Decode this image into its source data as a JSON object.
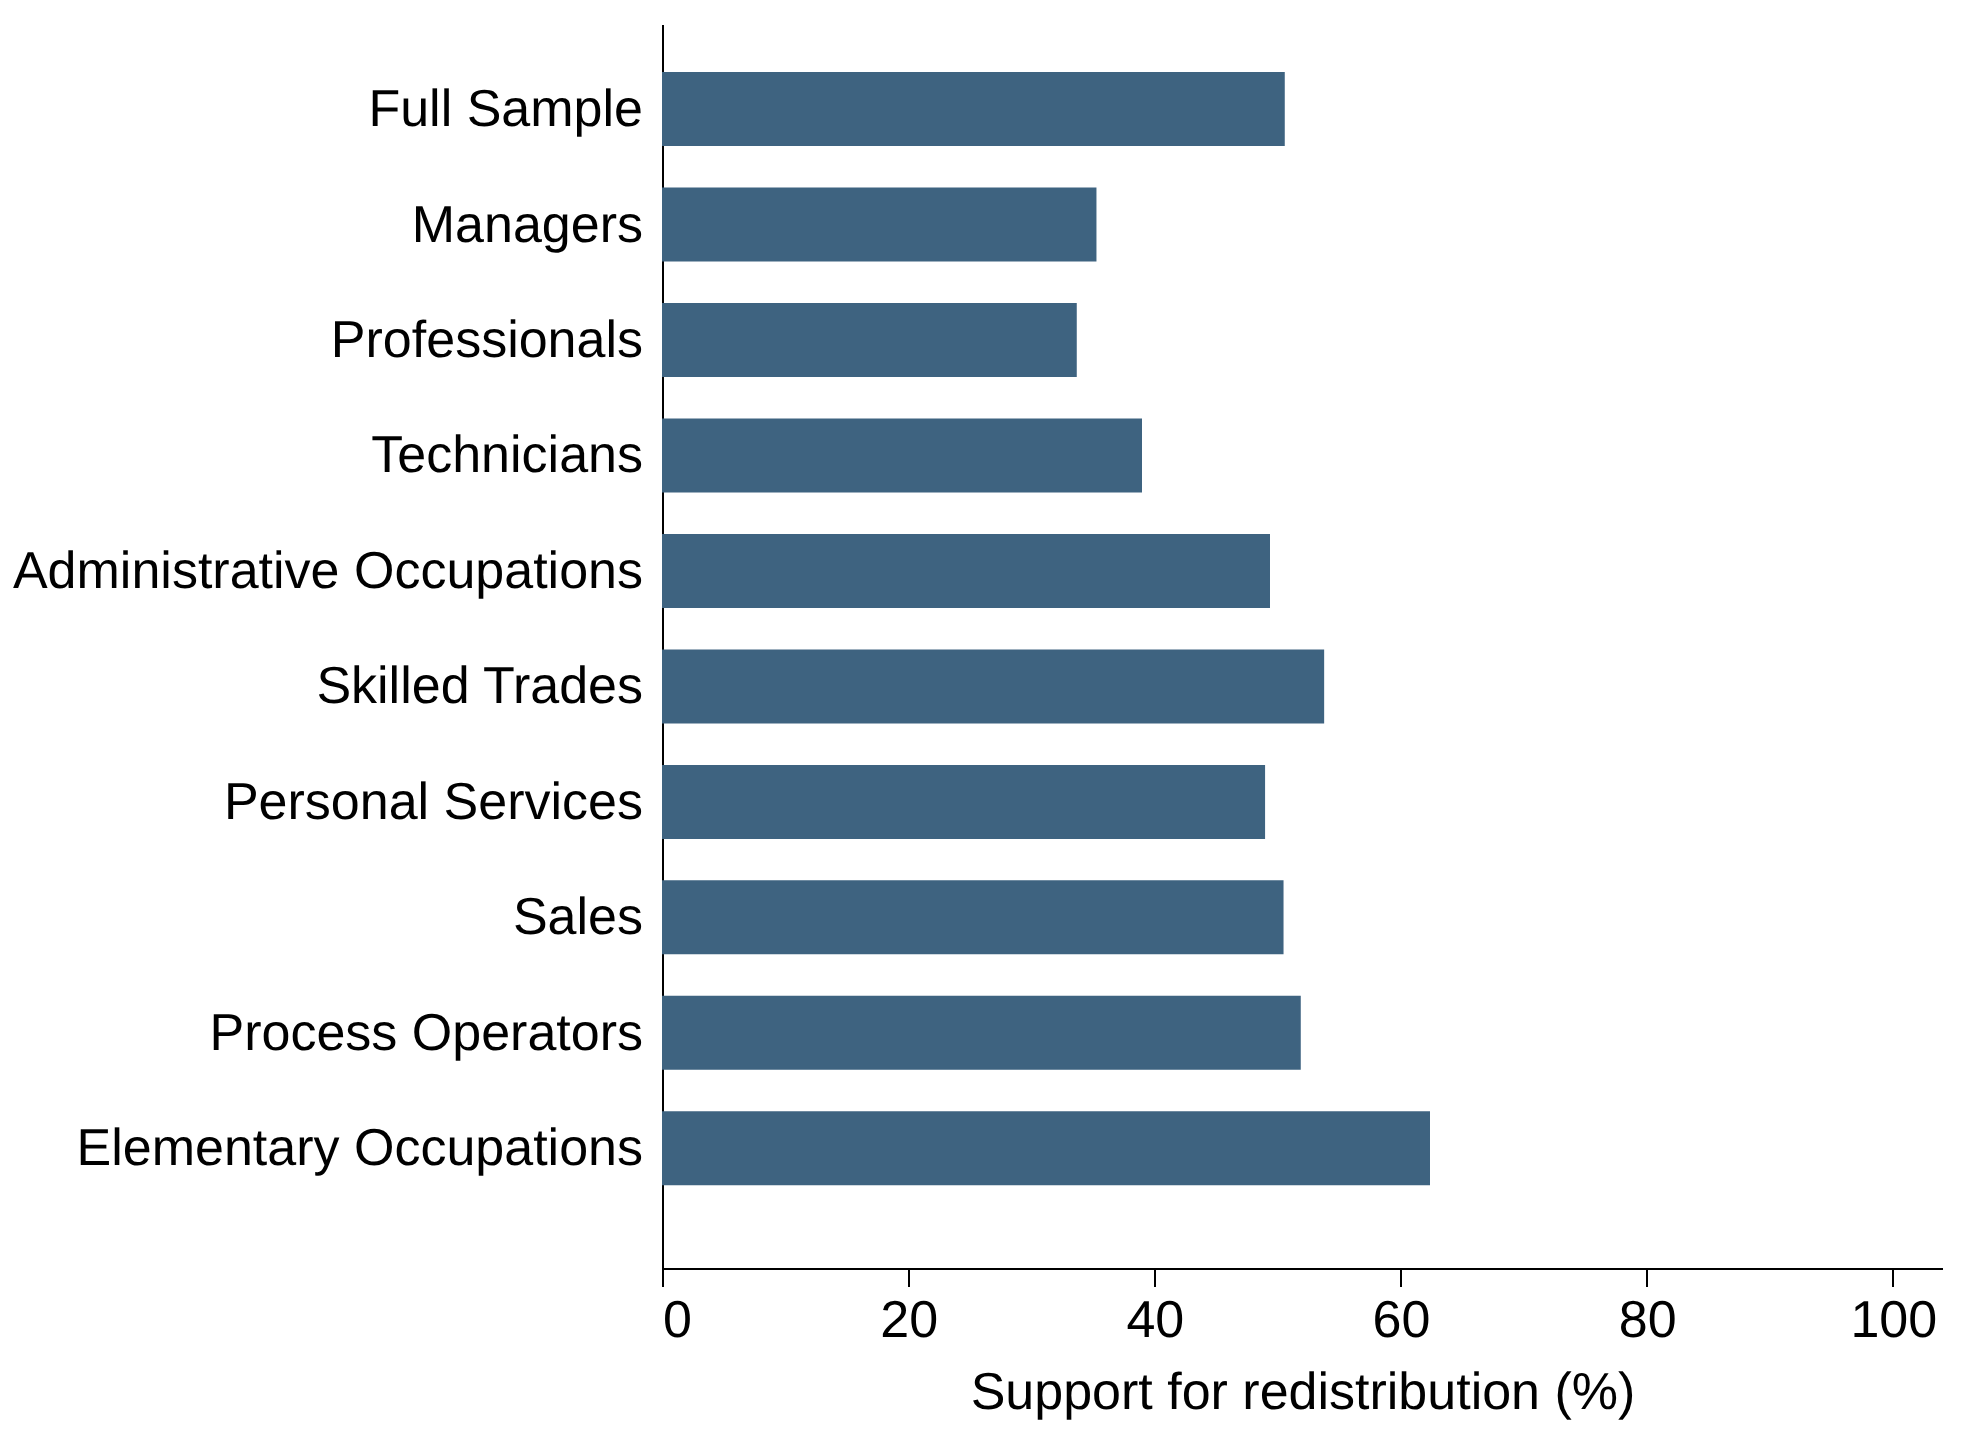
{
  "chart_data": {
    "type": "bar",
    "orientation": "horizontal",
    "xlabel": "Support for redistribution (%)",
    "categories": [
      "Full Sample",
      "Managers",
      "Professionals",
      "Technicians",
      "Administrative Occupations",
      "Skilled Trades",
      "Personal Services",
      "Sales",
      "Process Operators",
      "Elementary Occupations"
    ],
    "values": [
      50.6,
      35.3,
      33.7,
      39.0,
      49.4,
      53.8,
      49.0,
      50.5,
      51.9,
      62.4
    ],
    "color": "#3e6380",
    "xlim": [
      0,
      104
    ],
    "xticks": [
      0,
      20,
      40,
      60,
      80,
      100
    ],
    "grid": false
  }
}
